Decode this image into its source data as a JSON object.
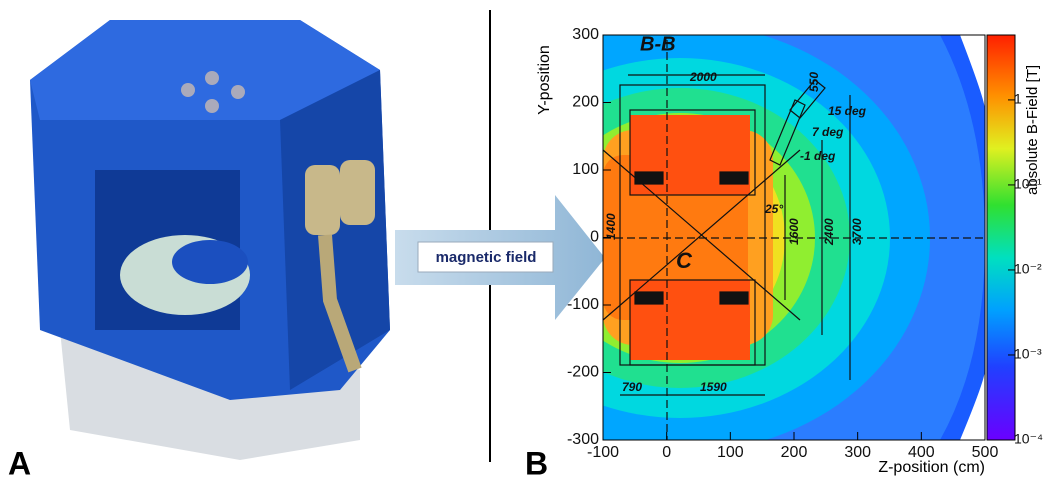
{
  "panel_a": {
    "label": "A"
  },
  "arrow": {
    "label": "magnetic field"
  },
  "panel_b": {
    "label": "B",
    "x_axis": {
      "title": "Z-position (cm)",
      "lim": [
        -100,
        500
      ],
      "ticks": [
        -100,
        0,
        100,
        200,
        300,
        400,
        500
      ]
    },
    "y_axis": {
      "title": "Y-position",
      "lim": [
        -300,
        300
      ],
      "ticks": [
        -300,
        -200,
        -100,
        0,
        100,
        200,
        300
      ]
    },
    "colorbar": {
      "title": "absolute B-Field [T]",
      "log": true,
      "lim": [
        0.0001,
        5.8
      ],
      "ticks": [
        {
          "value": 1,
          "label": "1"
        },
        {
          "value": 0.1,
          "label": "10⁻¹"
        },
        {
          "value": 0.01,
          "label": "10⁻²"
        },
        {
          "value": 0.001,
          "label": "10⁻³"
        },
        {
          "value": 0.0001,
          "label": "10⁻⁴"
        }
      ]
    },
    "annotations": {
      "section": "B-B",
      "width": "2000",
      "angle_1": "15 deg",
      "angle_2": "7 deg",
      "angle_3": "-1 deg",
      "angle_4": "25°",
      "height_1": "1600",
      "height_2": "2400",
      "height_3": "3700",
      "gap": "1400",
      "offset": "550",
      "left_len": "790",
      "right_len": "1590",
      "letter": "C"
    }
  }
}
